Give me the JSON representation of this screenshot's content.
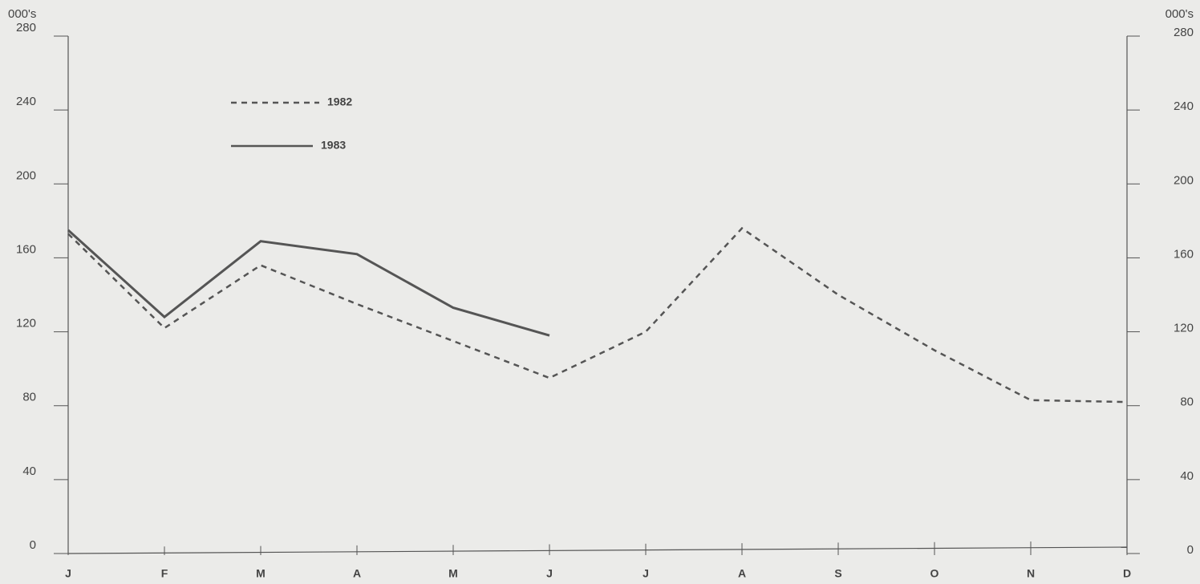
{
  "chart_data": {
    "type": "line",
    "y_label": "000's",
    "y2_label": "000's",
    "categories": [
      "J",
      "F",
      "M",
      "A",
      "M",
      "J",
      "J",
      "A",
      "S",
      "O",
      "N",
      "D"
    ],
    "series": [
      {
        "name": "1982",
        "color": "#555555",
        "dash": true,
        "values": [
          173,
          122,
          156,
          135,
          115,
          95,
          120,
          176,
          140,
          110,
          83,
          82
        ]
      },
      {
        "name": "1983",
        "color": "#555555",
        "dash": false,
        "values": [
          175,
          128,
          169,
          162,
          133,
          118,
          null,
          null,
          null,
          null,
          null,
          null
        ]
      }
    ],
    "ylim": [
      0,
      280
    ],
    "yticks": [
      0,
      40,
      80,
      120,
      160,
      200,
      240,
      280
    ],
    "y2lim": [
      0,
      280
    ],
    "y2ticks": [
      0,
      40,
      80,
      120,
      160,
      200,
      240,
      280
    ],
    "grid": false
  }
}
